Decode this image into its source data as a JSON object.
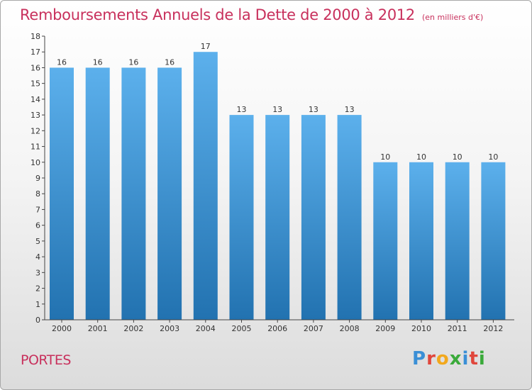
{
  "header": {
    "title": "Remboursements Annuels de la Dette de 2000 à 2012",
    "unit_note": "(en milliers d'€)"
  },
  "footer": {
    "location": "PORTES",
    "brand_letters": [
      {
        "ch": "P",
        "color": "#3a8fd6"
      },
      {
        "ch": "r",
        "color": "#e0463c"
      },
      {
        "ch": "o",
        "color": "#f2a81d"
      },
      {
        "ch": "x",
        "color": "#3aaa3a"
      },
      {
        "ch": "i",
        "color": "#3a8fd6"
      },
      {
        "ch": "t",
        "color": "#e0463c"
      },
      {
        "ch": "i",
        "color": "#3aaa3a"
      }
    ]
  },
  "colors": {
    "accent": "#c8305c",
    "bar_top": "#5cb0ec",
    "bar_bottom": "#2272b0"
  },
  "chart_data": {
    "type": "bar",
    "title": "Remboursements Annuels de la Dette de 2000 à 2012",
    "unit": "(en milliers d'€)",
    "categories": [
      "2000",
      "2001",
      "2002",
      "2003",
      "2004",
      "2005",
      "2006",
      "2007",
      "2008",
      "2009",
      "2010",
      "2011",
      "2012"
    ],
    "values": [
      16,
      16,
      16,
      16,
      17,
      13,
      13,
      13,
      13,
      10,
      10,
      10,
      10
    ],
    "yticks": [
      0,
      1,
      2,
      3,
      4,
      5,
      6,
      7,
      8,
      9,
      10,
      11,
      12,
      13,
      14,
      15,
      16,
      17,
      18
    ],
    "ylim": [
      0,
      18
    ],
    "grid": false,
    "legend": "none"
  }
}
